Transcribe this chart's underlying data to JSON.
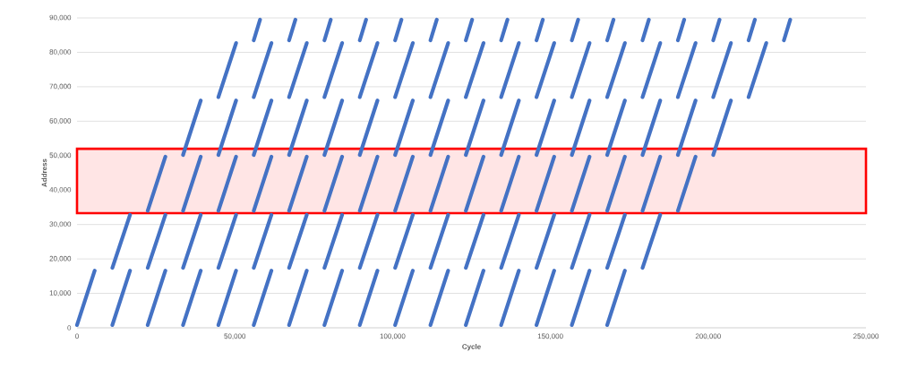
{
  "chart_data": {
    "type": "line",
    "xlabel": "Cycle",
    "ylabel": "Address",
    "xlim": [
      0,
      250000
    ],
    "ylim": [
      0,
      90000
    ],
    "xticks": [
      {
        "value": 0,
        "label": "0"
      },
      {
        "value": 50000,
        "label": "50,000"
      },
      {
        "value": 100000,
        "label": "100,000"
      },
      {
        "value": 150000,
        "label": "150,000"
      },
      {
        "value": 200000,
        "label": "200,000"
      },
      {
        "value": 250000,
        "label": "250,000"
      }
    ],
    "yticks": [
      {
        "value": 0,
        "label": "0"
      },
      {
        "value": 10000,
        "label": "10,000"
      },
      {
        "value": 20000,
        "label": "20,000"
      },
      {
        "value": 30000,
        "label": "30,000"
      },
      {
        "value": 40000,
        "label": "40,000"
      },
      {
        "value": 50000,
        "label": "50,000"
      },
      {
        "value": 60000,
        "label": "60,000"
      },
      {
        "value": 70000,
        "label": "70,000"
      },
      {
        "value": 80000,
        "label": "80,000"
      },
      {
        "value": 90000,
        "label": "90,000"
      }
    ],
    "grid": "y",
    "line_style": "solid",
    "series": [
      {
        "color": "#4472c4",
        "x": [
          0,
          5600,
          null,
          11200,
          16800,
          null,
          22400,
          28000,
          null,
          33600,
          39200,
          null,
          44800,
          50400,
          null,
          56000,
          61600,
          null,
          67200,
          72800,
          null,
          78400,
          84000,
          null,
          89600,
          95200,
          null,
          100800,
          106400,
          null,
          112000,
          117600,
          null,
          123200,
          128800,
          null,
          134400,
          140000,
          null,
          145600,
          151200,
          null,
          156800,
          162400,
          null,
          168000,
          173600
        ],
        "values": [
          800,
          16600,
          null,
          800,
          16600,
          null,
          800,
          16600,
          null,
          800,
          16600,
          null,
          800,
          16600,
          null,
          800,
          16600,
          null,
          800,
          16600,
          null,
          800,
          16600,
          null,
          800,
          16600,
          null,
          800,
          16600,
          null,
          800,
          16600,
          null,
          800,
          16600,
          null,
          800,
          16600,
          null,
          800,
          16600,
          null,
          800,
          16600,
          null,
          800,
          16600
        ]
      },
      {
        "color": "#4472c4",
        "x": [
          11200,
          16800,
          null,
          22400,
          28000,
          null,
          33600,
          39200,
          null,
          44800,
          50400,
          null,
          56000,
          61600,
          null,
          67200,
          72800,
          null,
          78400,
          84000,
          null,
          89600,
          95200,
          null,
          100800,
          106400,
          null,
          112000,
          117600,
          null,
          123200,
          128800,
          null,
          134400,
          140000,
          null,
          145600,
          151200,
          null,
          156800,
          162400,
          null,
          168000,
          173600,
          null,
          179200,
          184800
        ],
        "values": [
          17400,
          32800,
          null,
          17400,
          32800,
          null,
          17400,
          32800,
          null,
          17400,
          32800,
          null,
          17400,
          32800,
          null,
          17400,
          32800,
          null,
          17400,
          32800,
          null,
          17400,
          32800,
          null,
          17400,
          32800,
          null,
          17400,
          32800,
          null,
          17400,
          32800,
          null,
          17400,
          32800,
          null,
          17400,
          32800,
          null,
          17400,
          32800,
          null,
          17400,
          32800,
          null,
          17400,
          32800
        ]
      },
      {
        "color": "#4472c4",
        "x": [
          22400,
          28000,
          null,
          33600,
          39200,
          null,
          44800,
          50400,
          null,
          56000,
          61600,
          null,
          67200,
          72800,
          null,
          78400,
          84000,
          null,
          89600,
          95200,
          null,
          100800,
          106400,
          null,
          112000,
          117600,
          null,
          123200,
          128800,
          null,
          134400,
          140000,
          null,
          145600,
          151200,
          null,
          156800,
          162400,
          null,
          168000,
          173600,
          null,
          179200,
          184800,
          null,
          190400,
          196000
        ],
        "values": [
          34000,
          49700,
          null,
          34000,
          49700,
          null,
          34000,
          49700,
          null,
          34000,
          49700,
          null,
          34000,
          49700,
          null,
          34000,
          49700,
          null,
          34000,
          49700,
          null,
          34000,
          49700,
          null,
          34000,
          49700,
          null,
          34000,
          49700,
          null,
          34000,
          49700,
          null,
          34000,
          49700,
          null,
          34000,
          49700,
          null,
          34000,
          49700,
          null,
          34000,
          49700,
          null,
          34000,
          49700
        ]
      },
      {
        "color": "#4472c4",
        "x": [
          33600,
          39200,
          null,
          44800,
          50400,
          null,
          56000,
          61600,
          null,
          67200,
          72800,
          null,
          78400,
          84000,
          null,
          89600,
          95200,
          null,
          100800,
          106400,
          null,
          112000,
          117600,
          null,
          123200,
          128800,
          null,
          134400,
          140000,
          null,
          145600,
          151200,
          null,
          156800,
          162400,
          null,
          168000,
          173600,
          null,
          179200,
          184800,
          null,
          190400,
          196000,
          null,
          201600,
          207200
        ],
        "values": [
          50200,
          66000,
          null,
          50200,
          66000,
          null,
          50200,
          66000,
          null,
          50200,
          66000,
          null,
          50200,
          66000,
          null,
          50200,
          66000,
          null,
          50200,
          66000,
          null,
          50200,
          66000,
          null,
          50200,
          66000,
          null,
          50200,
          66000,
          null,
          50200,
          66000,
          null,
          50200,
          66000,
          null,
          50200,
          66000,
          null,
          50200,
          66000,
          null,
          50200,
          66000,
          null,
          50200,
          66000
        ]
      },
      {
        "color": "#4472c4",
        "x": [
          44800,
          50400,
          null,
          56000,
          61600,
          null,
          67200,
          72800,
          null,
          78400,
          84000,
          null,
          89600,
          95200,
          null,
          100800,
          106400,
          null,
          112000,
          117600,
          null,
          123200,
          128800,
          null,
          134400,
          140000,
          null,
          145600,
          151200,
          null,
          156800,
          162400,
          null,
          168000,
          173600,
          null,
          179200,
          184800,
          null,
          190400,
          196000,
          null,
          201600,
          207200,
          null,
          212800,
          218400
        ],
        "values": [
          67000,
          82700,
          null,
          67000,
          82700,
          null,
          67000,
          82700,
          null,
          67000,
          82700,
          null,
          67000,
          82700,
          null,
          67000,
          82700,
          null,
          67000,
          82700,
          null,
          67000,
          82700,
          null,
          67000,
          82700,
          null,
          67000,
          82700,
          null,
          67000,
          82700,
          null,
          67000,
          82700,
          null,
          67000,
          82700,
          null,
          67000,
          82700,
          null,
          67000,
          82700,
          null,
          67000,
          82700
        ]
      },
      {
        "color": "#4472c4",
        "x": [
          56000,
          58000,
          null,
          67200,
          69200,
          null,
          78400,
          80400,
          null,
          89600,
          91600,
          null,
          100800,
          102800,
          null,
          112000,
          114000,
          null,
          123200,
          125200,
          null,
          134400,
          136400,
          null,
          145600,
          147600,
          null,
          156800,
          158800,
          null,
          168000,
          170000,
          null,
          179200,
          181200,
          null,
          190400,
          192400,
          null,
          201600,
          203600,
          null,
          212800,
          214800,
          null,
          224000,
          226000
        ],
        "values": [
          83500,
          89500,
          null,
          83500,
          89500,
          null,
          83500,
          89500,
          null,
          83500,
          89500,
          null,
          83500,
          89500,
          null,
          83500,
          89500,
          null,
          83500,
          89500,
          null,
          83500,
          89500,
          null,
          83500,
          89500,
          null,
          83500,
          89500,
          null,
          83500,
          89500,
          null,
          83500,
          89500,
          null,
          83500,
          89500,
          null,
          83500,
          89500,
          null,
          83500,
          89500,
          null,
          83500,
          89500
        ]
      }
    ],
    "bands": [
      {
        "axis": "y",
        "from": 33300,
        "to": 52000,
        "color": "#ff0000"
      }
    ]
  }
}
